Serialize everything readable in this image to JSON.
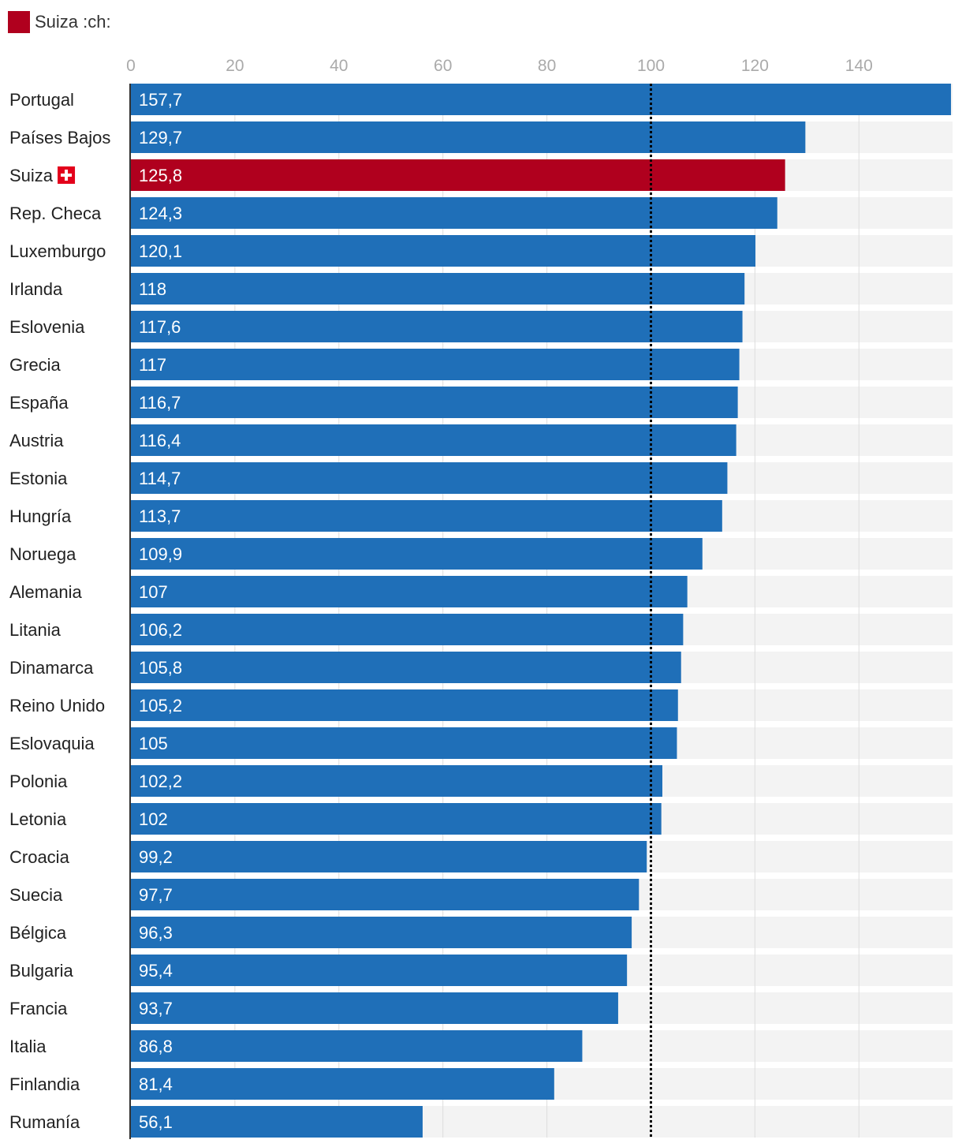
{
  "legend": {
    "label": "Suiza :ch:",
    "color": "#b0001e"
  },
  "colors": {
    "bar": "#1f6fb8",
    "highlight": "#b0001e",
    "track": "#f3f3f3",
    "grid": "#dddddd",
    "reference": "#000000"
  },
  "chart_data": {
    "type": "bar",
    "orientation": "horizontal",
    "title": "",
    "xlabel": "",
    "ylabel": "",
    "xlim": [
      0,
      158
    ],
    "ticks": [
      0,
      20,
      40,
      60,
      80,
      100,
      120,
      140
    ],
    "reference_line": 100,
    "highlight": "Suiza",
    "highlight_icon": "swiss-flag-icon",
    "categories": [
      "Portugal",
      "Países Bajos",
      "Suiza",
      "Rep. Checa",
      "Luxemburgo",
      "Irlanda",
      "Eslovenia",
      "Grecia",
      "España",
      "Austria",
      "Estonia",
      "Hungría",
      "Noruega",
      "Alemania",
      "Litania",
      "Dinamarca",
      "Reino Unido",
      "Eslovaquia",
      "Polonia",
      "Letonia",
      "Croacia",
      "Suecia",
      "Bélgica",
      "Bulgaria",
      "Francia",
      "Italia",
      "Finlandia",
      "Rumanía"
    ],
    "values": [
      157.7,
      129.7,
      125.8,
      124.3,
      120.1,
      118,
      117.6,
      117,
      116.7,
      116.4,
      114.7,
      113.7,
      109.9,
      107,
      106.2,
      105.8,
      105.2,
      105,
      102.2,
      102,
      99.2,
      97.7,
      96.3,
      95.4,
      93.7,
      86.8,
      81.4,
      56.1
    ],
    "value_labels": [
      "157,7",
      "129,7",
      "125,8",
      "124,3",
      "120,1",
      "118",
      "117,6",
      "117",
      "116,7",
      "116,4",
      "114,7",
      "113,7",
      "109,9",
      "107",
      "106,2",
      "105,8",
      "105,2",
      "105",
      "102,2",
      "102",
      "99,2",
      "97,7",
      "96,3",
      "95,4",
      "93,7",
      "86,8",
      "81,4",
      "56,1"
    ]
  }
}
